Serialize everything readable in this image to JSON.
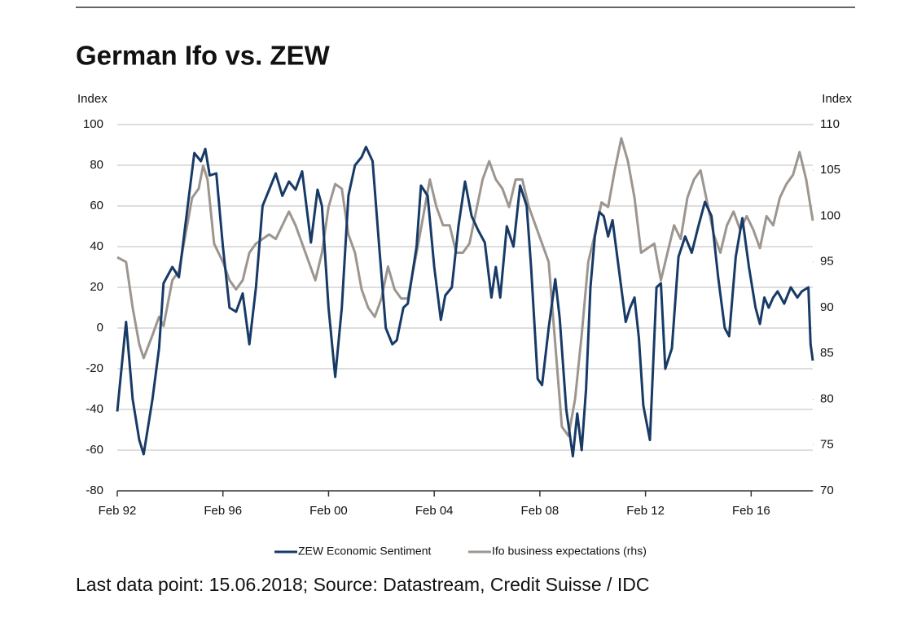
{
  "chart_data": {
    "type": "line",
    "title": "German Ifo vs. ZEW",
    "y_label": "Index",
    "y2_label": "Index",
    "source": "Last data point: 15.06.2018; Source: Datastream, Credit Suisse / IDC",
    "xlim": [
      "1992-02",
      "2018-06"
    ],
    "xticks": [
      {
        "value": "1992-02",
        "label": "Feb 92"
      },
      {
        "value": "1996-02",
        "label": "Feb 96"
      },
      {
        "value": "2000-02",
        "label": "Feb 00"
      },
      {
        "value": "2004-02",
        "label": "Feb 04"
      },
      {
        "value": "2008-02",
        "label": "Feb 08"
      },
      {
        "value": "2012-02",
        "label": "Feb 12"
      },
      {
        "value": "2016-02",
        "label": "Feb 16"
      }
    ],
    "ylim": [
      -80,
      100
    ],
    "yticks": [
      -80,
      -60,
      -40,
      -20,
      0,
      20,
      40,
      60,
      80,
      100
    ],
    "y2lim": [
      70,
      110
    ],
    "y2ticks": [
      70,
      75,
      80,
      85,
      90,
      95,
      100,
      105,
      110
    ],
    "grid": true,
    "legend": "bottom",
    "series": [
      {
        "name": "ZEW Economic Sentiment",
        "color": "#173a66",
        "axis": "y",
        "x": [
          "1992-02",
          "1992-06",
          "1992-09",
          "1992-12",
          "1993-02",
          "1993-06",
          "1993-09",
          "1993-11",
          "1994-03",
          "1994-06",
          "1994-10",
          "1995-01",
          "1995-04",
          "1995-06",
          "1995-08",
          "1995-11",
          "1996-02",
          "1996-05",
          "1996-08",
          "1996-11",
          "1997-02",
          "1997-05",
          "1997-08",
          "1997-11",
          "1998-02",
          "1998-05",
          "1998-08",
          "1998-11",
          "1999-02",
          "1999-06",
          "1999-09",
          "1999-11",
          "2000-02",
          "2000-05",
          "2000-08",
          "2000-11",
          "2001-02",
          "2001-05",
          "2001-07",
          "2001-10",
          "2002-01",
          "2002-04",
          "2002-07",
          "2002-09",
          "2002-12",
          "2003-02",
          "2003-06",
          "2003-08",
          "2003-11",
          "2004-02",
          "2004-05",
          "2004-07",
          "2004-10",
          "2005-01",
          "2005-04",
          "2005-07",
          "2005-10",
          "2006-01",
          "2006-04",
          "2006-06",
          "2006-08",
          "2006-11",
          "2007-02",
          "2007-05",
          "2007-08",
          "2007-10",
          "2008-01",
          "2008-03",
          "2008-06",
          "2008-09",
          "2008-11",
          "2009-02",
          "2009-05",
          "2009-07",
          "2009-09",
          "2009-11",
          "2010-01",
          "2010-03",
          "2010-05",
          "2010-07",
          "2010-09",
          "2010-11",
          "2011-02",
          "2011-05",
          "2011-07",
          "2011-09",
          "2011-11",
          "2012-01",
          "2012-04",
          "2012-07",
          "2012-09",
          "2012-11",
          "2013-02",
          "2013-05",
          "2013-08",
          "2013-11",
          "2014-02",
          "2014-05",
          "2014-08",
          "2014-11",
          "2015-02",
          "2015-04",
          "2015-07",
          "2015-10",
          "2016-01",
          "2016-04",
          "2016-06",
          "2016-08",
          "2016-10",
          "2016-12",
          "2017-02",
          "2017-05",
          "2017-08",
          "2017-11",
          "2018-01",
          "2018-04",
          "2018-05",
          "2018-06"
        ],
        "values": [
          -41,
          3,
          -35,
          -55,
          -62,
          -35,
          -10,
          22,
          30,
          25,
          60,
          86,
          82,
          88,
          75,
          76,
          40,
          10,
          8,
          17,
          -8,
          20,
          60,
          68,
          76,
          65,
          72,
          68,
          77,
          42,
          68,
          60,
          10,
          -24,
          10,
          65,
          80,
          84,
          89,
          82,
          40,
          0,
          -8,
          -6,
          10,
          12,
          40,
          70,
          65,
          30,
          4,
          16,
          20,
          50,
          72,
          55,
          48,
          42,
          15,
          30,
          15,
          50,
          40,
          70,
          60,
          30,
          -25,
          -28,
          0,
          24,
          5,
          -40,
          -63,
          -42,
          -60,
          -30,
          20,
          45,
          57,
          55,
          45,
          53,
          28,
          3,
          10,
          15,
          -5,
          -38,
          -55,
          20,
          22,
          -20,
          -10,
          35,
          45,
          37,
          50,
          62,
          55,
          25,
          0,
          -4,
          35,
          54,
          30,
          10,
          2,
          15,
          10,
          15,
          18,
          12,
          20,
          15,
          18,
          20,
          -8,
          -16
        ]
      },
      {
        "name": "Ifo business expectations (rhs)",
        "color": "#9d958f",
        "axis": "y2",
        "x": [
          "1992-02",
          "1992-06",
          "1992-09",
          "1992-12",
          "1993-02",
          "1993-06",
          "1993-09",
          "1993-11",
          "1994-03",
          "1994-06",
          "1994-09",
          "1994-12",
          "1995-03",
          "1995-05",
          "1995-07",
          "1995-10",
          "1996-02",
          "1996-05",
          "1996-08",
          "1996-11",
          "1997-02",
          "1997-05",
          "1997-08",
          "1997-11",
          "1998-02",
          "1998-05",
          "1998-08",
          "1998-11",
          "1999-02",
          "1999-05",
          "1999-08",
          "1999-11",
          "2000-02",
          "2000-05",
          "2000-08",
          "2000-11",
          "2001-02",
          "2001-05",
          "2001-08",
          "2001-11",
          "2002-02",
          "2002-05",
          "2002-08",
          "2002-11",
          "2003-02",
          "2003-06",
          "2003-09",
          "2003-12",
          "2004-03",
          "2004-06",
          "2004-09",
          "2004-12",
          "2005-03",
          "2005-06",
          "2005-09",
          "2005-12",
          "2006-03",
          "2006-06",
          "2006-09",
          "2006-12",
          "2007-03",
          "2007-06",
          "2007-09",
          "2007-12",
          "2008-03",
          "2008-06",
          "2008-09",
          "2008-12",
          "2009-03",
          "2009-06",
          "2009-09",
          "2009-12",
          "2010-03",
          "2010-06",
          "2010-09",
          "2010-12",
          "2011-03",
          "2011-06",
          "2011-09",
          "2011-12",
          "2012-03",
          "2012-06",
          "2012-09",
          "2012-12",
          "2013-03",
          "2013-06",
          "2013-09",
          "2013-12",
          "2014-03",
          "2014-06",
          "2014-09",
          "2014-12",
          "2015-03",
          "2015-06",
          "2015-09",
          "2015-12",
          "2016-03",
          "2016-06",
          "2016-09",
          "2016-12",
          "2017-03",
          "2017-06",
          "2017-09",
          "2017-12",
          "2018-03",
          "2018-06"
        ],
        "values": [
          95.5,
          95,
          90,
          86,
          84.5,
          87,
          89,
          88,
          93,
          94,
          98,
          102,
          103,
          105.5,
          104,
          97,
          95,
          93,
          92,
          93,
          96,
          97,
          97.5,
          98,
          97.5,
          99,
          100.5,
          99,
          97,
          95,
          93,
          96,
          101,
          103.5,
          103,
          98,
          96,
          92,
          90,
          89,
          91,
          94.5,
          92,
          91,
          91,
          96,
          100,
          104,
          101,
          99,
          99,
          96,
          96,
          97,
          100.5,
          104,
          106,
          104,
          103,
          101,
          104,
          104,
          101,
          99,
          97,
          95,
          86,
          77,
          76,
          80,
          87,
          95,
          98,
          101.5,
          101,
          105,
          108.5,
          106,
          102,
          96,
          96.5,
          97,
          93,
          96,
          99,
          97.5,
          102,
          104,
          105,
          101.5,
          98,
          96,
          99,
          100.5,
          98.5,
          100,
          98.5,
          96.5,
          100,
          99,
          102,
          103.5,
          104.5,
          107,
          104,
          99.5
        ]
      }
    ]
  }
}
